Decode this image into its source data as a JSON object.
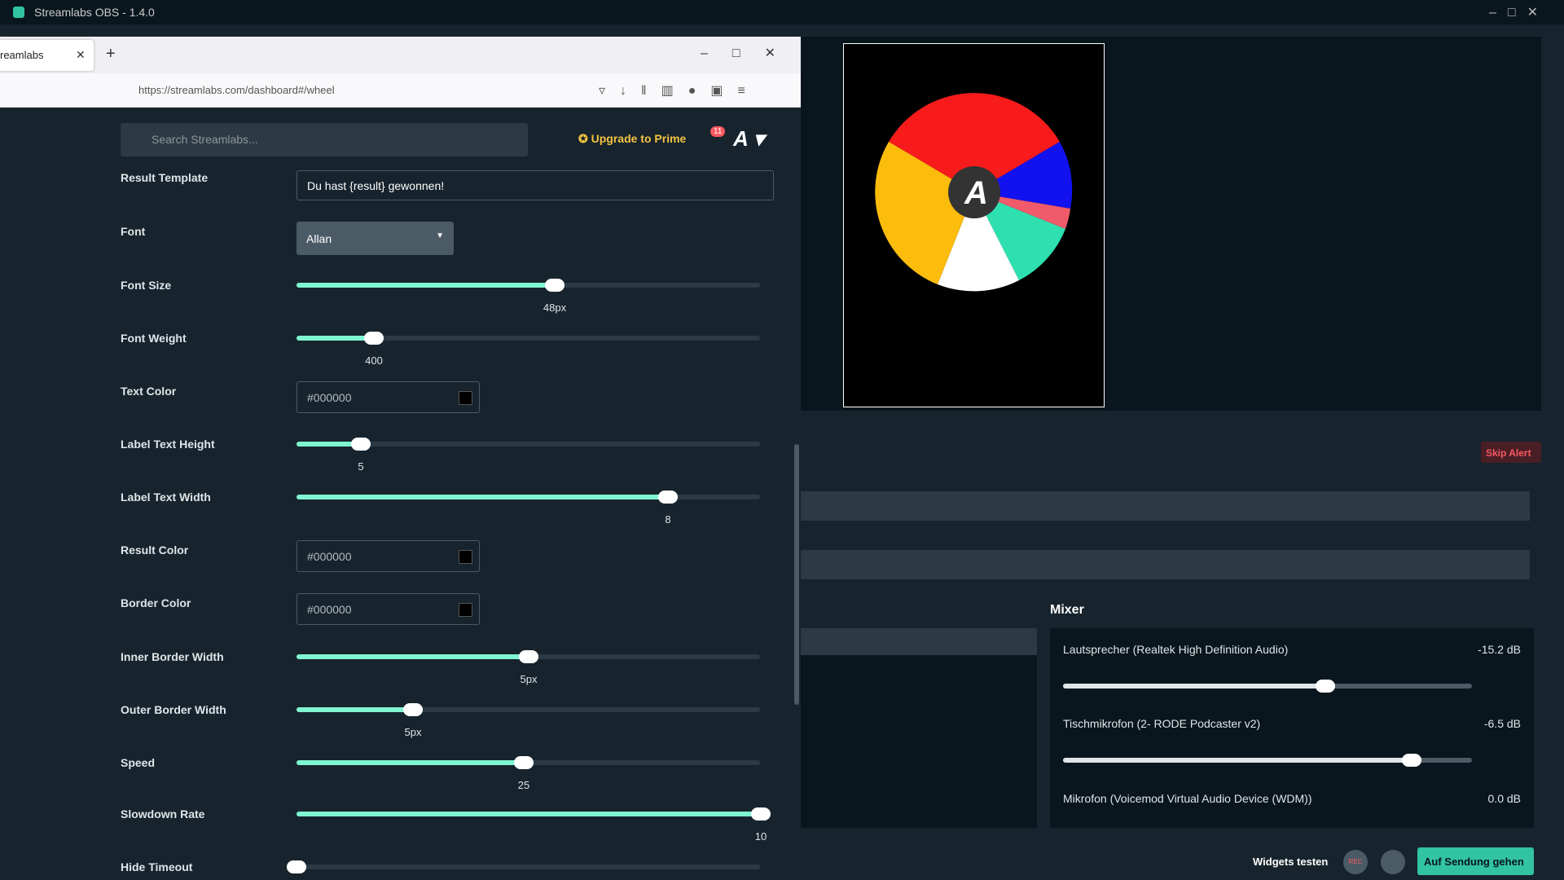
{
  "window": {
    "title": "Streamlabs OBS - 1.4.0"
  },
  "browser": {
    "tab": "reamlabs",
    "url": "https://streamlabs.com/dashboard#/wheel"
  },
  "header": {
    "search": "Search Streamlabs...",
    "upgrade": "Upgrade to Prime",
    "notifications": "11"
  },
  "settings": [
    {
      "label": "Result Template",
      "input": "Du hast {result} gewonnen!"
    },
    {
      "label": "Font",
      "select": "Allan"
    },
    {
      "label": "Font Size",
      "slider": "48px"
    },
    {
      "label": "Font Weight",
      "slider": "400"
    },
    {
      "label": "Text Color",
      "color": "#000000"
    },
    {
      "label": "Label Text Height",
      "slider": "5"
    },
    {
      "label": "Label Text Width",
      "slider": "8"
    },
    {
      "label": "Result Color",
      "color": "#000000"
    },
    {
      "label": "Border Color",
      "color": "#000000"
    },
    {
      "label": "Inner Border Width",
      "slider": "5px"
    },
    {
      "label": "Outer Border Width",
      "slider": "5px"
    },
    {
      "label": "Speed",
      "slider": "25"
    },
    {
      "label": "Slowdown Rate",
      "slider": "10"
    },
    {
      "label": "Hide Timeout"
    }
  ],
  "alerts": {
    "skip": "Skip Alert"
  },
  "mixer": {
    "title": "Mixer",
    "channels": [
      {
        "name": "Lautsprecher (Realtek High Definition Audio)",
        "level": "-15.2 dB"
      },
      {
        "name": "Tischmikrofon (2- RODE Podcaster v2)",
        "level": "-6.5 dB"
      },
      {
        "name": "Mikrofon (Voicemod Virtual Audio Device (WDM))",
        "level": "0.0 dB"
      }
    ]
  },
  "footer": {
    "test": "Widgets testen",
    "rec": "REC",
    "live": "Auf Sendung gehen"
  }
}
